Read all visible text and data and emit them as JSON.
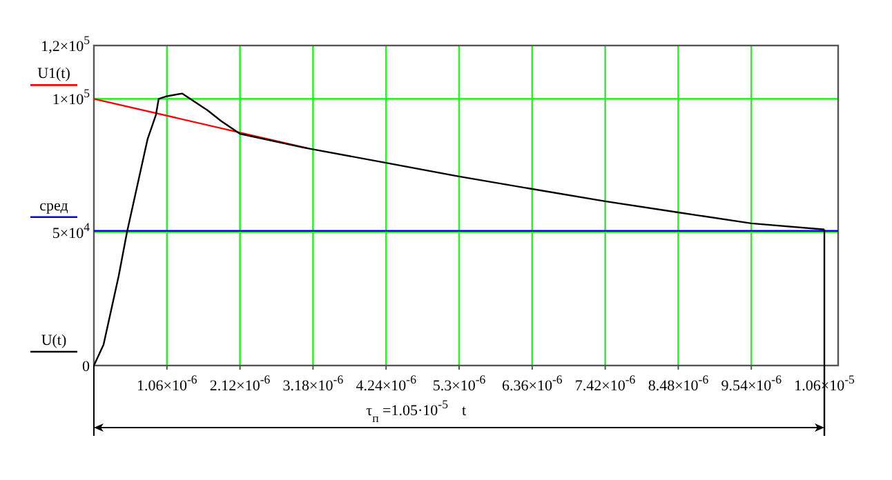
{
  "chart_data": {
    "type": "line",
    "xlabel": "t",
    "legend": "left",
    "grid": true,
    "marker": "none",
    "line_style": "solid",
    "xlim": [
      0,
      1.08e-05
    ],
    "ylim": [
      0,
      120000
    ],
    "xticks": [
      {
        "value": 1.06e-06,
        "label": "1.06×10$^{-6}$"
      },
      {
        "value": 2.12e-06,
        "label": "2.12×10$^{-6}$"
      },
      {
        "value": 3.18e-06,
        "label": "3.18×10$^{-6}$"
      },
      {
        "value": 4.24e-06,
        "label": "4.24×10$^{-6}$"
      },
      {
        "value": 5.3e-06,
        "label": "5.3×10$^{-6}$"
      },
      {
        "value": 6.36e-06,
        "label": "6.36×10$^{-6}$"
      },
      {
        "value": 7.42e-06,
        "label": "7.42×10$^{-6}$"
      },
      {
        "value": 8.48e-06,
        "label": "8.48×10$^{-6}$"
      },
      {
        "value": 9.54e-06,
        "label": "9.54×10$^{-6}$"
      },
      {
        "value": 1.06e-05,
        "label": "1.06×10$^{-5}$"
      }
    ],
    "yticks": [
      {
        "value": 0,
        "label": "0"
      },
      {
        "value": 50000,
        "label": "5×10$^{4}$"
      },
      {
        "value": 100000,
        "label": "1×10$^{5}$"
      },
      {
        "value": 120000,
        "label": "1,2×10$^{5}$"
      }
    ],
    "series": [
      {
        "name": "U1(t)",
        "color": "#ff0000",
        "x": [
          0,
          3.1e-06
        ],
        "values": [
          100000,
          81500
        ]
      },
      {
        "name": "сред",
        "color": "#0000ff",
        "x": [
          0,
          1.08e-05
        ],
        "values": [
          50500,
          50500
        ]
      },
      {
        "name": "U(t)",
        "color": "#000000",
        "x": [
          0,
          1.4e-07,
          3.6e-07,
          4.8e-07,
          7.8e-07,
          9e-07,
          9.4e-07,
          1.06e-06,
          1.28e-06,
          1.65e-06,
          1.85e-06,
          2.12e-06,
          3.05e-06,
          4.24e-06,
          5.3e-06,
          6.36e-06,
          7.42e-06,
          8.48e-06,
          9.54e-06,
          1.06e-05
        ],
        "values": [
          0,
          7800,
          33600,
          50000,
          85000,
          94000,
          100000,
          101000,
          102000,
          95700,
          91600,
          86900,
          81700,
          76000,
          70900,
          66200,
          61600,
          57400,
          53300,
          51000
        ]
      }
    ],
    "ref_lines": [
      {
        "axis": "x",
        "value": 1.06e-05,
        "color": "#000000"
      }
    ],
    "annotations": [
      "τ$_{п}$ =1.05·10$^{-5}$"
    ]
  }
}
